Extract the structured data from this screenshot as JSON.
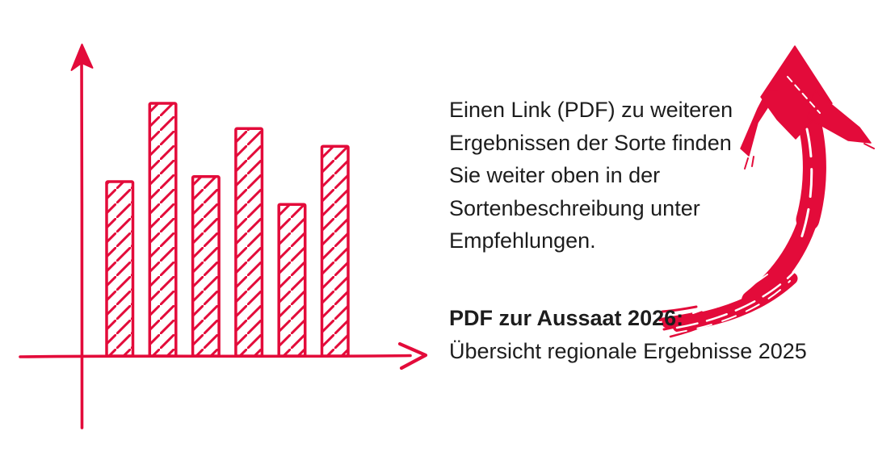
{
  "colors": {
    "red": "#e30b3a",
    "text": "#1d1d1d",
    "background": "#ffffff"
  },
  "info": {
    "lines": [
      "Einen Link (PDF) zu weiteren",
      "Ergebnissen der Sorte finden",
      "Sie weiter oben in der",
      "Sortenbeschreibung unter",
      "Empfehlungen."
    ],
    "pdf_heading": "PDF zur Aussaat 2026:",
    "pdf_link": "Übersicht regionale Ergebnisse 2025"
  },
  "chart_data": {
    "type": "bar",
    "title": "",
    "xlabel": "",
    "ylabel": "",
    "categories": [
      "",
      "",
      "",
      "",
      "",
      ""
    ],
    "values": [
      69,
      100,
      71,
      90,
      60,
      83
    ],
    "ylim": [
      0,
      100
    ],
    "grid": false,
    "legend": false,
    "axis_tick_labels": false,
    "bar_fill": "diagonal-hatch",
    "style": "hand-drawn sketch, red hatched bars, unlabeled axes with arrowheads"
  },
  "decor": {
    "arrow_icon": "brush-arrow-up-icon"
  }
}
